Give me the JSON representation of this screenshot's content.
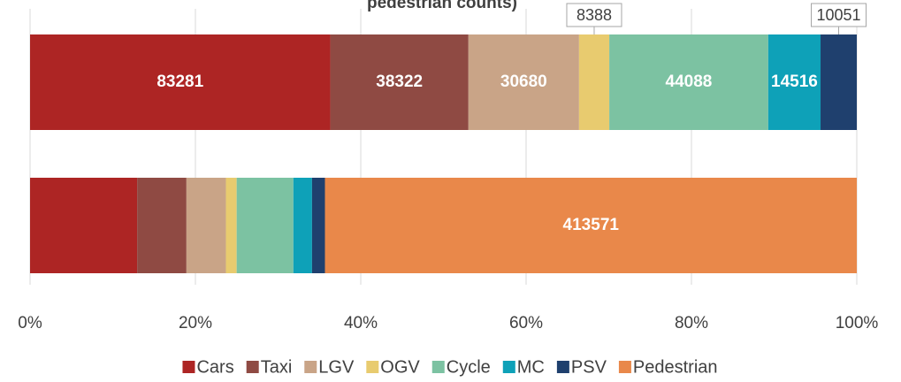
{
  "chart_data": {
    "type": "stacked_bar_100_horizontal",
    "title": "pedestrian counts)",
    "series": [
      {
        "name": "Cars",
        "color": "#ad2524",
        "values": [
          83281,
          83281
        ],
        "value_labels": [
          "83281",
          null
        ]
      },
      {
        "name": "Taxi",
        "color": "#8f4a43",
        "values": [
          38322,
          38322
        ],
        "value_labels": [
          "38322",
          null
        ]
      },
      {
        "name": "LGV",
        "color": "#c9a487",
        "values": [
          30680,
          30680
        ],
        "value_labels": [
          "30680",
          null
        ]
      },
      {
        "name": "OGV",
        "color": "#e8cb6f",
        "values": [
          8388,
          8388
        ],
        "value_labels": [
          "8388",
          null
        ]
      },
      {
        "name": "Cycle",
        "color": "#7cc2a2",
        "values": [
          44088,
          44088
        ],
        "value_labels": [
          "44088",
          null
        ]
      },
      {
        "name": "MC",
        "color": "#0ea1b8",
        "values": [
          14516,
          14516
        ],
        "value_labels": [
          "14516",
          null
        ]
      },
      {
        "name": "PSV",
        "color": "#1f406e",
        "values": [
          10051,
          10051
        ],
        "value_labels": [
          "10051",
          null
        ]
      },
      {
        "name": "Pedestrian",
        "color": "#e9884a",
        "values": [
          null,
          413571
        ],
        "value_labels": [
          null,
          "413571"
        ]
      }
    ],
    "xlim": [
      0,
      100
    ],
    "xticks": [
      {
        "value": 0,
        "label": "0%"
      },
      {
        "value": 20,
        "label": "20%"
      },
      {
        "value": 40,
        "label": "40%"
      },
      {
        "value": 60,
        "label": "60%"
      },
      {
        "value": 80,
        "label": "80%"
      },
      {
        "value": 100,
        "label": "100%"
      }
    ],
    "grid": true,
    "legend": "bottom"
  }
}
